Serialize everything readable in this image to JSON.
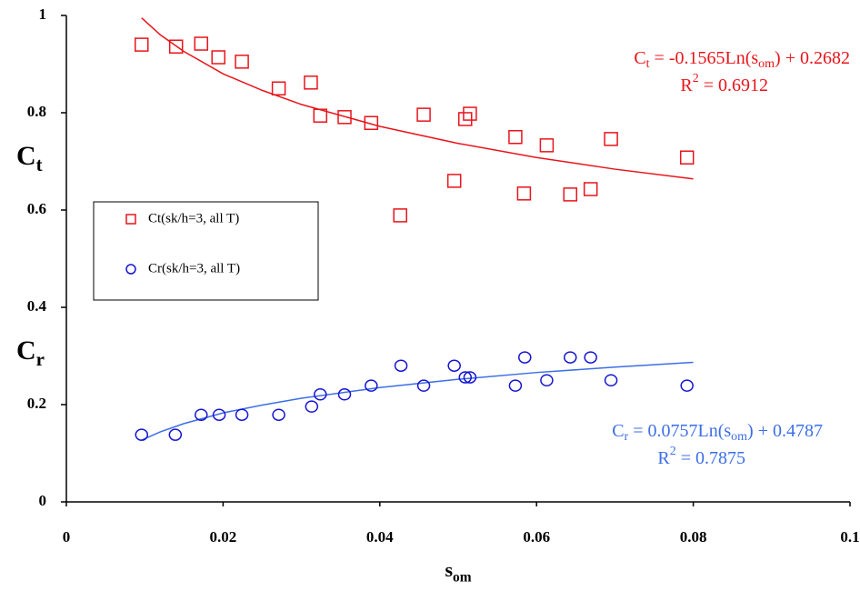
{
  "chart_data": {
    "type": "scatter",
    "x_label": [
      "s",
      "om"
    ],
    "y_annotations": [
      [
        "C",
        "t"
      ],
      [
        "C",
        "r"
      ]
    ],
    "xlim": [
      0,
      0.1
    ],
    "ylim": [
      0,
      1
    ],
    "xticks": [
      0,
      0.02,
      0.04,
      0.06,
      0.08,
      0.1
    ],
    "yticks": [
      0,
      0.2,
      0.4,
      0.6,
      0.8,
      1
    ],
    "grid": false,
    "series": [
      {
        "name": "Ct(sk/h=3, all T)",
        "color": "#e8141b",
        "marker": "square",
        "x": [
          0.0096,
          0.014,
          0.0172,
          0.0194,
          0.0224,
          0.0271,
          0.0312,
          0.0324,
          0.0355,
          0.0389,
          0.0456,
          0.0495,
          0.0426,
          0.0509,
          0.0515,
          0.0573,
          0.0584,
          0.0613,
          0.0643,
          0.0669,
          0.0695,
          0.0792
        ],
        "values": [
          0.94,
          0.936,
          0.942,
          0.914,
          0.905,
          0.85,
          0.862,
          0.794,
          0.791,
          0.779,
          0.796,
          0.66,
          0.589,
          0.787,
          0.798,
          0.75,
          0.634,
          0.733,
          0.632,
          0.643,
          0.746,
          0.708
        ]
      },
      {
        "name": "Cr(sk/h=3, all T)",
        "color": "#1414d2",
        "marker": "circle",
        "x": [
          0.0096,
          0.0139,
          0.0172,
          0.0195,
          0.0224,
          0.0271,
          0.0313,
          0.0324,
          0.0355,
          0.0389,
          0.0427,
          0.0456,
          0.0495,
          0.0509,
          0.0515,
          0.0573,
          0.0585,
          0.0613,
          0.0643,
          0.0669,
          0.0695,
          0.0792
        ],
        "values": [
          0.138,
          0.138,
          0.179,
          0.179,
          0.179,
          0.179,
          0.196,
          0.221,
          0.221,
          0.239,
          0.28,
          0.239,
          0.28,
          0.256,
          0.256,
          0.239,
          0.297,
          0.25,
          0.297,
          0.297,
          0.25,
          0.239
        ]
      }
    ],
    "trendlines": [
      {
        "color": "#e8141b",
        "x": [
          0.0096,
          0.012,
          0.015,
          0.02,
          0.025,
          0.03,
          0.04,
          0.05,
          0.06,
          0.07,
          0.08
        ],
        "values": [
          0.995,
          0.96,
          0.926,
          0.88,
          0.846,
          0.817,
          0.772,
          0.737,
          0.708,
          0.684,
          0.664
        ],
        "equation": [
          "C",
          "t",
          " = -0.1565Ln(s",
          "om",
          ") + 0.2682"
        ],
        "r_squared": [
          "R",
          "2",
          " = 0.6912"
        ]
      },
      {
        "color": "#3c6ee6",
        "x": [
          0.0096,
          0.012,
          0.015,
          0.02,
          0.025,
          0.03,
          0.04,
          0.05,
          0.06,
          0.07,
          0.08
        ],
        "values": [
          0.127,
          0.144,
          0.161,
          0.183,
          0.199,
          0.213,
          0.235,
          0.252,
          0.266,
          0.277,
          0.287
        ],
        "equation": [
          "C",
          "r",
          " = 0.0757Ln(s",
          "om",
          ") + 0.4787"
        ],
        "r_squared": [
          "R",
          "2",
          " = 0.7875"
        ]
      }
    ]
  }
}
